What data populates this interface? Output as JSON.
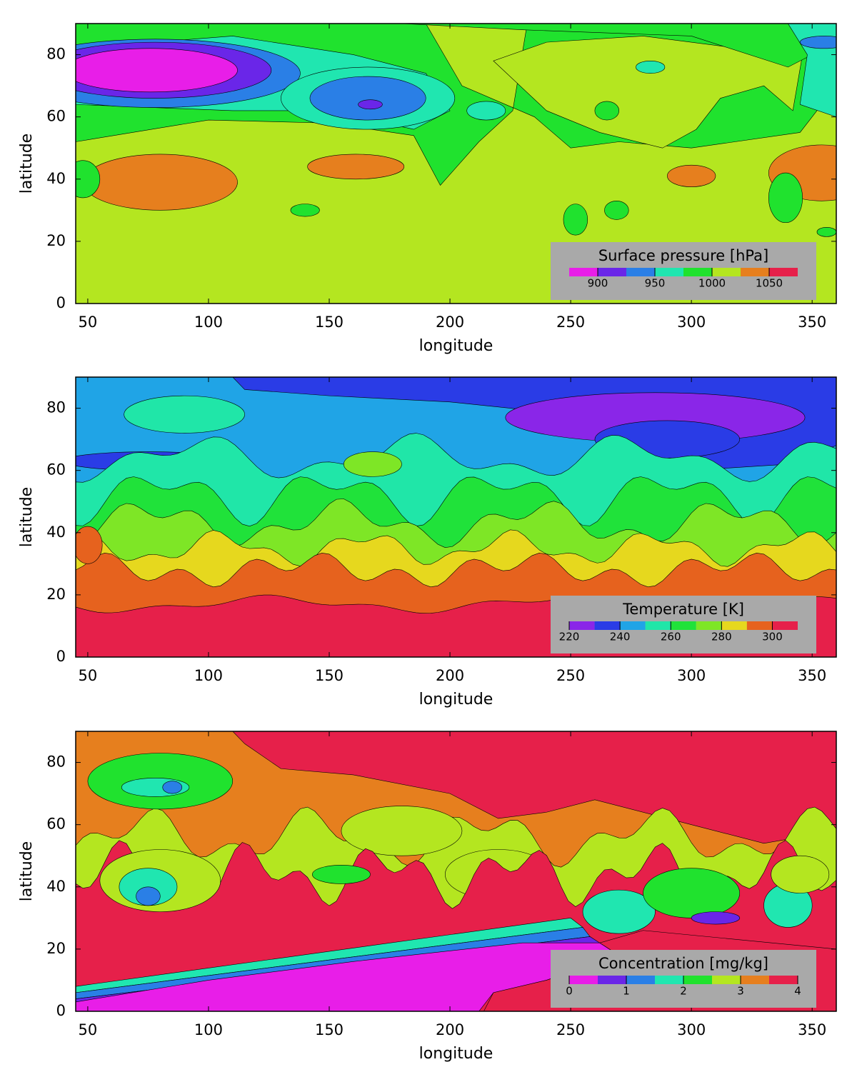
{
  "chart_data": [
    {
      "type": "contour",
      "title": "Surface pressure [hPa]",
      "xlabel": "longitude",
      "ylabel": "latitude",
      "xlim": [
        45,
        360
      ],
      "ylim": [
        0,
        90
      ],
      "xticks": [
        50,
        100,
        150,
        200,
        250,
        300,
        350
      ],
      "yticks": [
        0,
        20,
        40,
        60,
        80
      ],
      "levels": [
        875,
        900,
        925,
        950,
        975,
        1000,
        1025,
        1050,
        1075
      ],
      "colors": [
        "#e81ee8",
        "#6a26e8",
        "#2a7fe6",
        "#20e6b0",
        "#20e22e",
        "#b4e620",
        "#e67f1e",
        "#e6204a"
      ],
      "cbticks": [
        900,
        950,
        1000,
        1050
      ]
    },
    {
      "type": "contour",
      "title": "Temperature [K]",
      "xlabel": "longitude",
      "ylabel": "latitude",
      "xlim": [
        45,
        360
      ],
      "ylim": [
        0,
        90
      ],
      "xticks": [
        50,
        100,
        150,
        200,
        250,
        300,
        350
      ],
      "yticks": [
        0,
        20,
        40,
        60,
        80
      ],
      "levels": [
        220,
        230,
        240,
        250,
        260,
        270,
        280,
        290,
        300,
        310
      ],
      "colors": [
        "#8a26e8",
        "#2a3ce6",
        "#20a4e6",
        "#20e6a8",
        "#20e23a",
        "#7ee626",
        "#e6d81e",
        "#e6621e",
        "#e6204a"
      ],
      "cbticks": [
        220,
        240,
        260,
        280,
        300
      ]
    },
    {
      "type": "contour",
      "title": "Concentration [mg/kg]",
      "xlabel": "longitude",
      "ylabel": "latitude",
      "xlim": [
        45,
        360
      ],
      "ylim": [
        0,
        90
      ],
      "xticks": [
        50,
        100,
        150,
        200,
        250,
        300,
        350
      ],
      "yticks": [
        0,
        20,
        40,
        60,
        80
      ],
      "levels": [
        0,
        0.5,
        1,
        1.5,
        2,
        2.5,
        3,
        3.5,
        4
      ],
      "colors": [
        "#e81ee8",
        "#6a26e8",
        "#2a7fe6",
        "#20e6b0",
        "#20e22e",
        "#b4e620",
        "#e67f1e",
        "#e6204a"
      ],
      "cbticks": [
        0,
        1,
        2,
        3,
        4
      ]
    }
  ]
}
